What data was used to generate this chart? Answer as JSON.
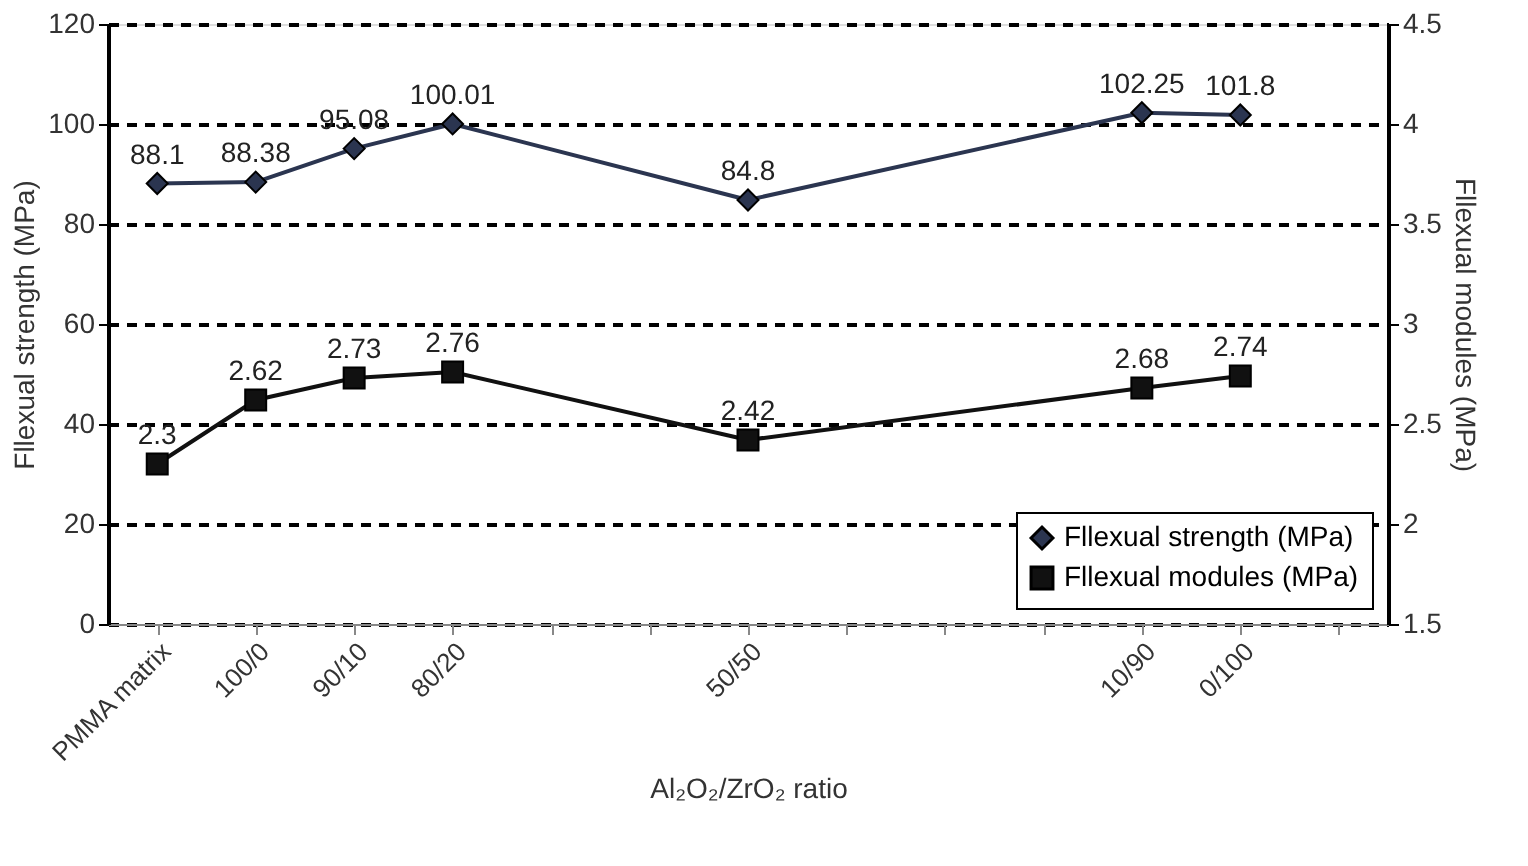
{
  "chart_data": {
    "type": "line",
    "xlabel": "Al₂O₂/ZrO₂ ratio",
    "ylabel": "Fllexual strength (MPa)",
    "y2label": "Fllexual modules (MPa)",
    "categories": [
      "PMMA matrix",
      "100/0",
      "90/10",
      "80/20",
      null,
      null,
      "50/50",
      null,
      null,
      null,
      "10/90",
      "0/100",
      null
    ],
    "series": [
      {
        "name": "Fllexual strength (MPa)",
        "color": "#2b3550",
        "marker": "diamond",
        "values": [
          88.1,
          88.38,
          95.08,
          100.01,
          null,
          null,
          84.8,
          null,
          null,
          null,
          102.25,
          101.8,
          null
        ]
      },
      {
        "name": "Fllexual modules (MPa)",
        "color": "#111111",
        "marker": "square",
        "axis": "y2",
        "values": [
          2.3,
          2.62,
          2.73,
          2.76,
          null,
          null,
          2.42,
          null,
          null,
          null,
          2.68,
          2.74,
          null
        ]
      }
    ],
    "ylim": [
      0,
      120
    ],
    "yticks": [
      0,
      20,
      40,
      60,
      80,
      100,
      120
    ],
    "y2lim": [
      1.5,
      4.5
    ],
    "y2ticks": [
      1.5,
      2,
      2.5,
      3,
      3.5,
      4,
      4.5
    ],
    "grid": "y",
    "legend": "bottom right",
    "data_labels": true
  }
}
